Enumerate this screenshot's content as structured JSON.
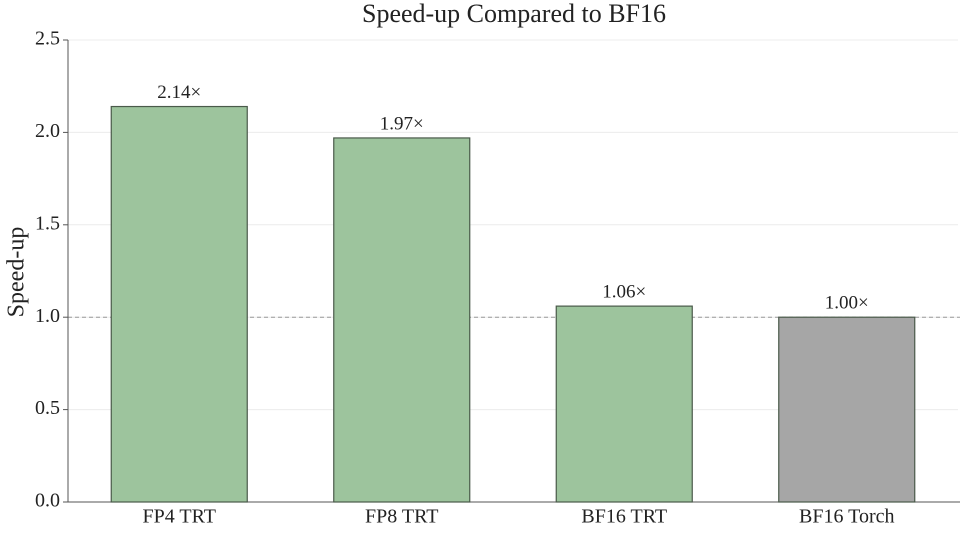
{
  "chart_data": {
    "type": "bar",
    "title": "Speed-up Compared to BF16",
    "y_label": "Speed-up",
    "categories": [
      "FP4 TRT",
      "FP8 TRT",
      "BF16 TRT",
      "BF16 Torch"
    ],
    "values": [
      2.14,
      1.97,
      1.06,
      1.0
    ],
    "value_labels": [
      "2.14×",
      "1.97×",
      "1.06×",
      "1.00×"
    ],
    "colors": [
      "#9dc49d",
      "#9dc49d",
      "#9dc49d",
      "#a6a6a6"
    ],
    "ylim": [
      0,
      2.5
    ],
    "yticks": [
      {
        "value": 0,
        "label": "0.0"
      },
      0.5,
      {
        "value": 1,
        "label": "1.0"
      },
      1.5,
      {
        "value": 2,
        "label": "2.0"
      },
      2.5
    ],
    "grid": true,
    "reference_line": 1
  }
}
